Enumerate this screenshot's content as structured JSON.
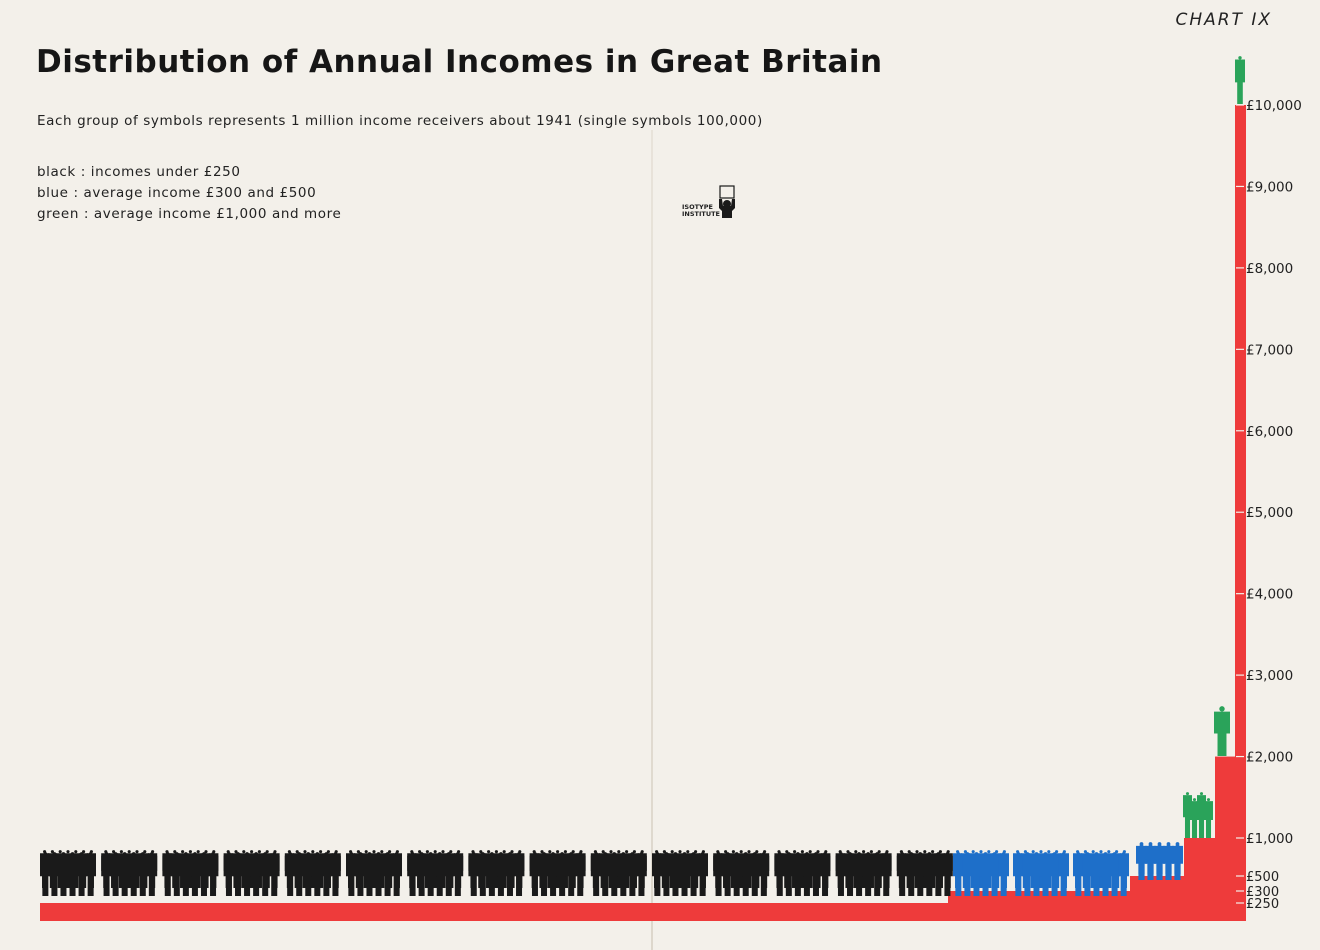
{
  "chart_number": "CHART IX",
  "title": "Distribution of Annual Incomes in Great Britain",
  "subtitle": "Each group of symbols represents 1 million income receivers about 1941 (single symbols 100,000)",
  "legend": [
    {
      "key": "black",
      "text": "black :  incomes under £250",
      "color": "#1a1a1a"
    },
    {
      "key": "blue",
      "text": "blue :  average income £300 and £500",
      "color": "#1e6fc9"
    },
    {
      "key": "green",
      "text": "green :  average income £1,000 and more",
      "color": "#2aa35a"
    }
  ],
  "logo": {
    "line1": "ISOTYPE",
    "line2": "INSTITUTE"
  },
  "colors": {
    "black": "#1a1a1a",
    "blue": "#1e6fc9",
    "green": "#2aa35a",
    "red": "#ee3b3b",
    "background": "#f3f0ea"
  },
  "chart_data": {
    "type": "pictogram-bar",
    "title": "Distribution of Annual Incomes in Great Britain",
    "unit_note": "1 symbol group = 1,000,000 income receivers; single symbol = 100,000",
    "y_ticks": [
      "£10,000",
      "£9,000",
      "£8,000",
      "£7,000",
      "£6,000",
      "£5,000",
      "£4,000",
      "£3,000",
      "£2,000",
      "£1,000",
      "£500",
      "£300",
      "£250"
    ],
    "y_tick_values": [
      10000,
      9000,
      8000,
      7000,
      6000,
      5000,
      4000,
      3000,
      2000,
      1000,
      500,
      300,
      250
    ],
    "groups": [
      {
        "name": "incomes under £250",
        "color": "black",
        "income": 250,
        "receivers_millions": 15
      },
      {
        "name": "average income £300",
        "color": "blue",
        "income": 300,
        "receivers_millions": 3
      },
      {
        "name": "average income £500",
        "color": "blue",
        "income": 500,
        "receivers_millions": 1
      },
      {
        "name": "average income £1,000",
        "color": "green",
        "income": 1000,
        "receivers_millions": 0.5
      },
      {
        "name": "average income £2,000",
        "color": "green",
        "income": 2000,
        "receivers_millions": 0.1
      },
      {
        "name": "average income £10,000",
        "color": "green",
        "income": 10000,
        "receivers_millions": 0.05
      }
    ]
  }
}
